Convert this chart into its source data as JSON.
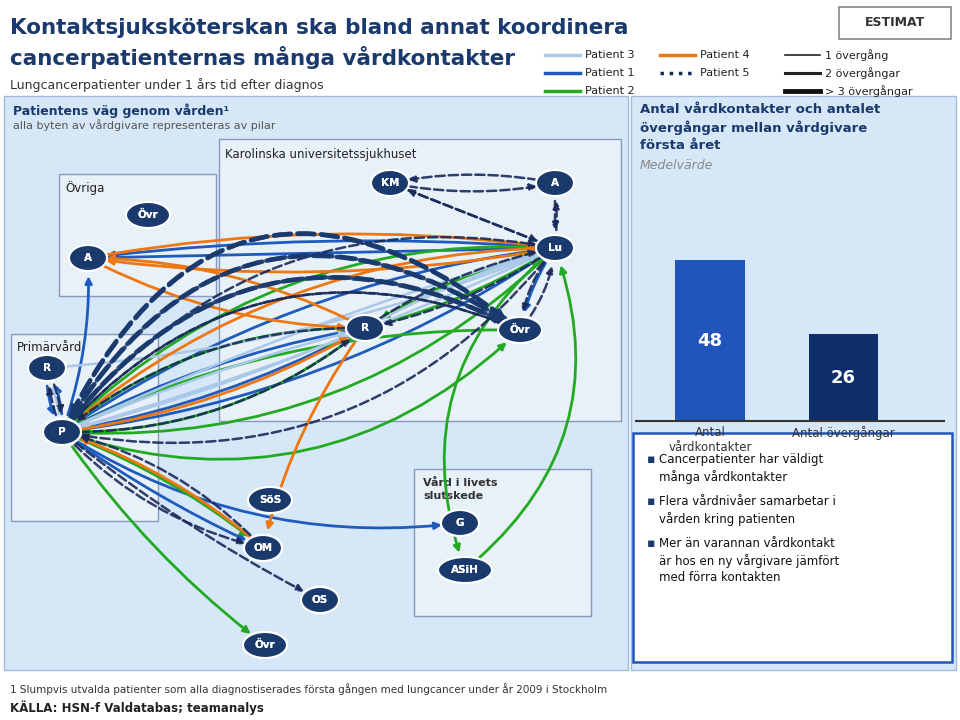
{
  "title_line1": "Kontaktsjuksköterskan ska bland annat koordinera",
  "title_line2": "cancerpatienternas många vårdkontakter",
  "subtitle": "Lungcancerpatienter under 1 års tid efter diagnos",
  "estimat_label": "ESTIMAT",
  "left_panel_title": "Patientens väg genom vården¹",
  "left_panel_subtitle": "alla byten av vårdgivare representeras av pilar",
  "right_panel_title": "Antal vårdkontakter och antalet\növergångar mellan vårdgivare\nförsta året",
  "medelvarde": "Medelvärde",
  "bar_labels": [
    "Antal\nvårdkontakter",
    "Antal övergångar"
  ],
  "bar_values": [
    48,
    26
  ],
  "bar_colors": [
    "#2255bb",
    "#0d2d6b"
  ],
  "bar_text_color": "#ffffff",
  "bullet_points": [
    "Cancerpatienter har väldigt\nmånga vårdkontakter",
    "Flera vårdnivåer samarbetar i\nvården kring patienten",
    "Mer än varannan vårdkontakt\när hos en ny vårgivare jämfört\nmed förra kontakten"
  ],
  "footnote": "1 Slumpvis utvalda patienter som alla diagnostiserades första gången med lungcancer under år 2009 i Stockholm",
  "source": "KÄLLA: HSN-f Valdatabas; teamanalys",
  "bg_color": "#ffffff",
  "panel_bg": "#d6e8f7",
  "panel_border": "#a0bcd8",
  "node_color": "#1a3a6e",
  "patient1_color": "#1f5bbd",
  "patient2_color": "#22aa22",
  "patient3_color": "#aac8e8",
  "patient4_color": "#ee7711",
  "patient5_color": "#1a2a5a"
}
